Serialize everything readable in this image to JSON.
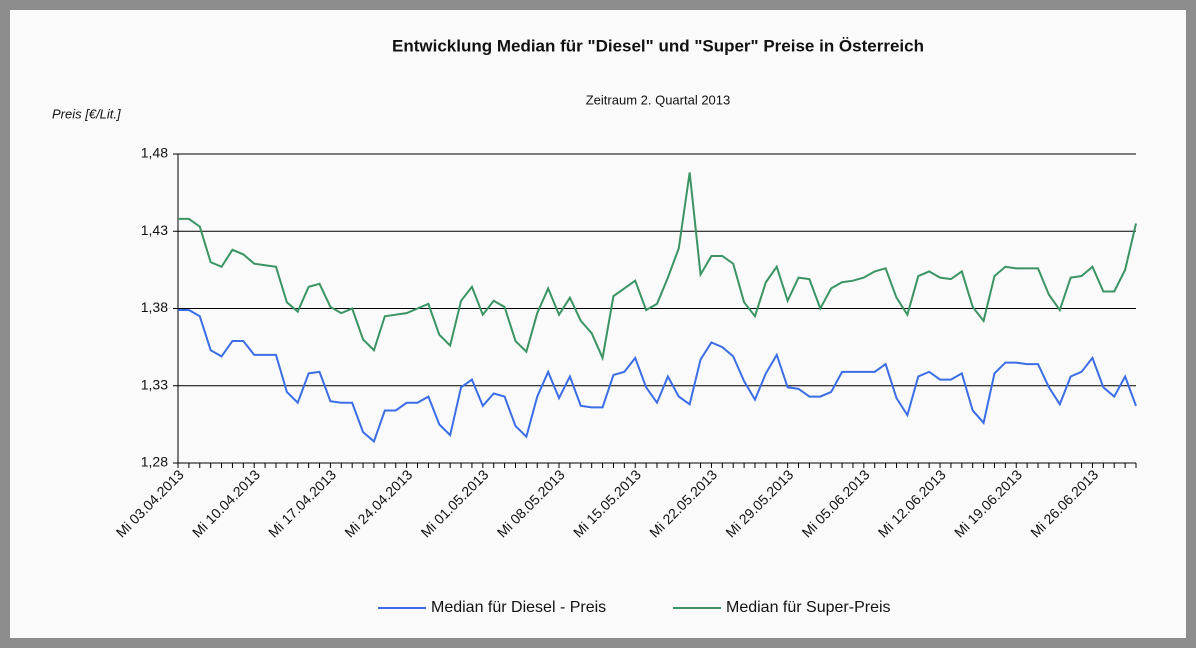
{
  "chart_data": {
    "type": "line",
    "title": "Entwicklung Median für \"Diesel\" und \"Super\" Preise in Österreich",
    "subtitle": "Zeitraum 2. Quartal 2013",
    "y_label": "Preis [€/Lit.]",
    "categories": [
      "Mi 03.04.2013",
      null,
      null,
      null,
      null,
      null,
      null,
      "Mi 10.04.2013",
      null,
      null,
      null,
      null,
      null,
      null,
      "Mi 17.04.2013",
      null,
      null,
      null,
      null,
      null,
      null,
      "Mi 24.04.2013",
      null,
      null,
      null,
      null,
      null,
      null,
      "Mi 01.05.2013",
      null,
      null,
      null,
      null,
      null,
      null,
      "Mi 08.05.2013",
      null,
      null,
      null,
      null,
      null,
      null,
      "Mi 15.05.2013",
      null,
      null,
      null,
      null,
      null,
      null,
      "Mi 22.05.2013",
      null,
      null,
      null,
      null,
      null,
      null,
      "Mi 29.05.2013",
      null,
      null,
      null,
      null,
      null,
      null,
      "Mi 05.06.2013",
      null,
      null,
      null,
      null,
      null,
      null,
      "Mi 12.06.2013",
      null,
      null,
      null,
      null,
      null,
      null,
      "Mi 19.06.2013",
      null,
      null,
      null,
      null,
      null,
      null,
      "Mi 26.06.2013",
      null,
      null,
      null,
      null
    ],
    "series": [
      {
        "name": "Median für Diesel - Preis",
        "color": "#3b6ee6",
        "values": [
          1.379,
          1.379,
          1.375,
          1.353,
          1.349,
          1.359,
          1.359,
          1.35,
          1.35,
          1.35,
          1.326,
          1.319,
          1.338,
          1.339,
          1.32,
          1.319,
          1.319,
          1.3,
          1.294,
          1.314,
          1.314,
          1.319,
          1.319,
          1.323,
          1.305,
          1.298,
          1.329,
          1.334,
          1.317,
          1.325,
          1.323,
          1.304,
          1.297,
          1.323,
          1.339,
          1.322,
          1.336,
          1.317,
          1.316,
          1.316,
          1.337,
          1.339,
          1.348,
          1.329,
          1.319,
          1.336,
          1.323,
          1.318,
          1.347,
          1.358,
          1.355,
          1.349,
          1.333,
          1.321,
          1.338,
          1.35,
          1.329,
          1.328,
          1.323,
          1.323,
          1.326,
          1.339,
          1.339,
          1.339,
          1.339,
          1.344,
          1.322,
          1.311,
          1.336,
          1.339,
          1.334,
          1.334,
          1.338,
          1.314,
          1.306,
          1.338,
          1.345,
          1.345,
          1.344,
          1.344,
          1.329,
          1.318,
          1.336,
          1.339,
          1.348,
          1.329,
          1.323,
          1.336,
          1.317
        ]
      },
      {
        "name": "Median für Super-Preis",
        "color": "#3a9463",
        "values": [
          1.438,
          1.438,
          1.433,
          1.41,
          1.407,
          1.418,
          1.415,
          1.409,
          1.408,
          1.407,
          1.384,
          1.378,
          1.394,
          1.396,
          1.381,
          1.377,
          1.38,
          1.36,
          1.353,
          1.375,
          1.376,
          1.377,
          1.38,
          1.383,
          1.363,
          1.356,
          1.385,
          1.394,
          1.376,
          1.385,
          1.381,
          1.359,
          1.352,
          1.377,
          1.393,
          1.376,
          1.387,
          1.372,
          1.364,
          1.348,
          1.388,
          1.393,
          1.398,
          1.379,
          1.383,
          1.4,
          1.419,
          1.468,
          1.402,
          1.414,
          1.414,
          1.409,
          1.384,
          1.375,
          1.397,
          1.407,
          1.385,
          1.4,
          1.399,
          1.38,
          1.393,
          1.397,
          1.398,
          1.4,
          1.404,
          1.406,
          1.387,
          1.376,
          1.401,
          1.404,
          1.4,
          1.399,
          1.404,
          1.381,
          1.372,
          1.401,
          1.407,
          1.406,
          1.406,
          1.406,
          1.389,
          1.379,
          1.4,
          1.401,
          1.407,
          1.391,
          1.391,
          1.405,
          1.435
        ]
      }
    ],
    "ylim": [
      1.28,
      1.48
    ],
    "yticks": [
      {
        "value": 1.28,
        "label": "1,28"
      },
      {
        "value": 1.33,
        "label": "1,33"
      },
      {
        "value": 1.38,
        "label": "1,38"
      },
      {
        "value": 1.43,
        "label": "1,43"
      },
      {
        "value": 1.48,
        "label": "1,48"
      }
    ],
    "grid": true,
    "legend": "bottom"
  }
}
